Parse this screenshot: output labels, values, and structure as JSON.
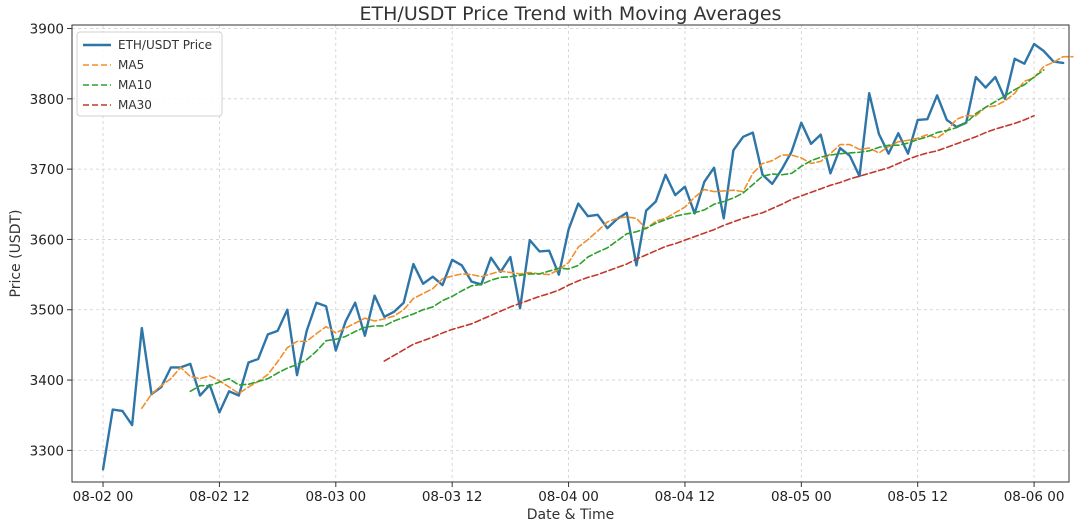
{
  "chart_data": {
    "type": "line",
    "title": "ETH/USDT Price Trend with Moving Averages",
    "xlabel": "Date & Time",
    "ylabel": "Price (USDT)",
    "ylim": [
      3255,
      3905
    ],
    "xlim": [
      -3.2,
      99.6
    ],
    "x_ticks": [
      {
        "label": "08-02 00",
        "x": 0
      },
      {
        "label": "08-02 12",
        "x": 12
      },
      {
        "label": "08-03 00",
        "x": 24
      },
      {
        "label": "08-03 12",
        "x": 36
      },
      {
        "label": "08-04 00",
        "x": 48
      },
      {
        "label": "08-04 12",
        "x": 60
      },
      {
        "label": "08-05 00",
        "x": 72
      },
      {
        "label": "08-05 12",
        "x": 84
      },
      {
        "label": "08-06 00",
        "x": 96
      }
    ],
    "y_ticks": [
      3300,
      3400,
      3500,
      3600,
      3700,
      3800,
      3900
    ],
    "grid": true,
    "legend_position": "top-left",
    "x_unit": "hours since 08-02 00",
    "series": [
      {
        "name": "ETH/USDT Price",
        "color": "#2e75a8",
        "style": "solid",
        "x_start": 0,
        "values": [
          3273,
          3358,
          3356,
          3336,
          3474,
          3380,
          3390,
          3418,
          3418,
          3423,
          3378,
          3393,
          3354,
          3384,
          3378,
          3425,
          3430,
          3465,
          3470,
          3500,
          3407,
          3470,
          3510,
          3505,
          3442,
          3483,
          3510,
          3463,
          3520,
          3490,
          3497,
          3510,
          3565,
          3537,
          3547,
          3535,
          3571,
          3563,
          3540,
          3536,
          3574,
          3554,
          3575,
          3502,
          3599,
          3583,
          3584,
          3550,
          3614,
          3651,
          3633,
          3635,
          3616,
          3629,
          3638,
          3563,
          3641,
          3654,
          3692,
          3663,
          3675,
          3637,
          3682,
          3702,
          3630,
          3727,
          3746,
          3752,
          3692,
          3679,
          3700,
          3725,
          3766,
          3736,
          3749,
          3694,
          3730,
          3719,
          3690,
          3808,
          3750,
          3722,
          3751,
          3722,
          3770,
          3771,
          3805,
          3770,
          3760,
          3766,
          3831,
          3816,
          3831,
          3800,
          3857,
          3850,
          3878,
          3868,
          3853,
          3851
        ]
      },
      {
        "name": "MA5",
        "color": "#f28e2b",
        "style": "dashed",
        "x_start": 4,
        "values": [
          3360,
          3380,
          3392,
          3402,
          3418,
          3405,
          3402,
          3406,
          3399,
          3390,
          3381,
          3390,
          3398,
          3408,
          3426,
          3446,
          3455,
          3455,
          3466,
          3476,
          3467,
          3474,
          3481,
          3488,
          3484,
          3487,
          3491,
          3500,
          3516,
          3523,
          3530,
          3544,
          3548,
          3551,
          3550,
          3547,
          3551,
          3555,
          3553,
          3551,
          3553,
          3551,
          3550,
          3557,
          3567,
          3589,
          3600,
          3612,
          3625,
          3630,
          3632,
          3630,
          3615,
          3626,
          3630,
          3638,
          3646,
          3660,
          3671,
          3668,
          3669,
          3670,
          3668,
          3694,
          3708,
          3712,
          3720,
          3720,
          3716,
          3708,
          3711,
          3722,
          3735,
          3735,
          3728,
          3730,
          3723,
          3732,
          3739,
          3741,
          3744,
          3749,
          3744,
          3754,
          3771,
          3776,
          3776,
          3788,
          3790,
          3797,
          3808,
          3825,
          3830,
          3846,
          3852,
          3860,
          3860
        ]
      },
      {
        "name": "MA10",
        "color": "#2ca02c",
        "style": "dashed",
        "x_start": 9,
        "values": [
          3384,
          3392,
          3392,
          3397,
          3402,
          3393,
          3394,
          3398,
          3402,
          3410,
          3417,
          3422,
          3429,
          3441,
          3456,
          3458,
          3462,
          3469,
          3475,
          3477,
          3477,
          3484,
          3489,
          3494,
          3500,
          3504,
          3513,
          3519,
          3527,
          3534,
          3536,
          3542,
          3546,
          3547,
          3549,
          3551,
          3551,
          3555,
          3559,
          3558,
          3563,
          3575,
          3582,
          3588,
          3598,
          3608,
          3611,
          3616,
          3623,
          3628,
          3633,
          3636,
          3638,
          3642,
          3650,
          3654,
          3659,
          3666,
          3678,
          3690,
          3693,
          3692,
          3694,
          3704,
          3712,
          3717,
          3720,
          3722,
          3723,
          3724,
          3726,
          3731,
          3734,
          3734,
          3737,
          3742,
          3746,
          3752,
          3755,
          3759,
          3766,
          3779,
          3788,
          3796,
          3804,
          3813,
          3820,
          3831,
          3841
        ]
      },
      {
        "name": "MA30",
        "color": "#c0392b",
        "style": "dashed",
        "x_start": 29,
        "values": [
          3427,
          3435,
          3443,
          3451,
          3456,
          3461,
          3467,
          3472,
          3476,
          3480,
          3486,
          3492,
          3498,
          3504,
          3509,
          3514,
          3519,
          3523,
          3528,
          3535,
          3541,
          3546,
          3550,
          3555,
          3560,
          3565,
          3572,
          3578,
          3584,
          3590,
          3594,
          3599,
          3604,
          3609,
          3614,
          3620,
          3625,
          3630,
          3634,
          3638,
          3644,
          3650,
          3657,
          3662,
          3667,
          3672,
          3677,
          3681,
          3686,
          3690,
          3694,
          3698,
          3702,
          3708,
          3714,
          3719,
          3723,
          3726,
          3731,
          3736,
          3741,
          3746,
          3752,
          3757,
          3761,
          3765,
          3770,
          3776
        ]
      }
    ]
  }
}
